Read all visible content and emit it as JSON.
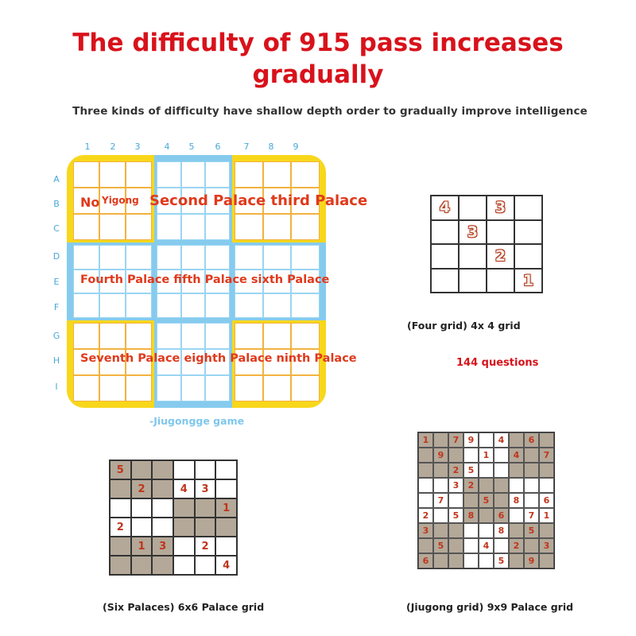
{
  "title_line1": "The difficulty of 915 pass increases",
  "title_line2": "gradually",
  "subtitle": "Three kinds of difficulty have shallow depth order to gradually improve intelligence",
  "big_board": {
    "col_numbers": [
      "1",
      "2",
      "3",
      "4",
      "5",
      "6",
      "7",
      "8",
      "9"
    ],
    "row_letters": [
      "A",
      "B",
      "C",
      "D",
      "E",
      "F",
      "G",
      "H",
      "I"
    ],
    "palace_labels": {
      "no": "No",
      "yigong": "Yigong",
      "row1_rest": "Second Palace third Palace",
      "row2": "Fourth Palace fifth Palace sixth Palace",
      "row3": "Seventh Palace eighth Palace ninth Palace"
    },
    "caption": "-Jiugongge game",
    "colors": {
      "yellow": "#f8d71b",
      "blue": "#86cbee",
      "label_red": "#e0391c"
    }
  },
  "grid4": {
    "cells": [
      "4",
      "",
      "3",
      "",
      "",
      "3",
      "",
      "",
      "",
      "",
      "2",
      "",
      "",
      "",
      "",
      "1"
    ],
    "caption": "(Four grid) 4x 4 grid",
    "questions": "144 questions"
  },
  "grid6": {
    "cells": [
      "5",
      "",
      "",
      "",
      "",
      "",
      "",
      "2",
      "",
      "4",
      "3",
      "",
      "",
      "",
      "",
      "",
      "",
      "1",
      "2",
      "",
      "",
      "",
      "",
      "",
      "",
      "1",
      "3",
      "",
      "2",
      "",
      "",
      "",
      "",
      "",
      "",
      "4"
    ],
    "shaded": [
      1,
      1,
      1,
      0,
      0,
      0,
      1,
      1,
      1,
      0,
      0,
      0,
      0,
      0,
      0,
      1,
      1,
      1,
      0,
      0,
      0,
      1,
      1,
      1,
      1,
      1,
      1,
      0,
      0,
      0,
      1,
      1,
      1,
      0,
      0,
      0
    ],
    "caption": "(Six Palaces) 6x6 Palace grid"
  },
  "grid9": {
    "cells": [
      "1",
      "",
      "7",
      "9",
      "",
      "4",
      "",
      "6",
      "",
      "",
      "9",
      "",
      "",
      "1",
      "",
      "4",
      "",
      "7",
      "",
      "",
      "2",
      "5",
      "",
      "",
      "",
      "",
      "",
      "",
      "",
      "3",
      "2",
      "",
      "",
      "",
      "",
      "",
      "",
      "7",
      "",
      "",
      "5",
      "",
      "8",
      "",
      "6",
      "2",
      "",
      "5",
      "8",
      "",
      "6",
      "",
      "7",
      "1",
      "3",
      "",
      "",
      "",
      "",
      "8",
      "",
      "5",
      "",
      "",
      "5",
      "",
      "",
      "4",
      "",
      "2",
      "",
      "3",
      "6",
      "",
      "",
      "",
      "",
      "5",
      "",
      "9",
      ""
    ],
    "shaded": [
      1,
      1,
      1,
      0,
      0,
      0,
      1,
      1,
      1,
      1,
      1,
      1,
      0,
      0,
      0,
      1,
      1,
      1,
      1,
      1,
      1,
      0,
      0,
      0,
      1,
      1,
      1,
      0,
      0,
      0,
      1,
      1,
      1,
      0,
      0,
      0,
      0,
      0,
      0,
      1,
      1,
      1,
      0,
      0,
      0,
      0,
      0,
      0,
      1,
      1,
      1,
      0,
      0,
      0,
      1,
      1,
      1,
      0,
      0,
      0,
      1,
      1,
      1,
      1,
      1,
      1,
      0,
      0,
      0,
      1,
      1,
      1,
      1,
      1,
      1,
      0,
      0,
      0,
      1,
      1,
      1
    ],
    "caption": "(Jiugong grid) 9x9 Palace grid"
  }
}
